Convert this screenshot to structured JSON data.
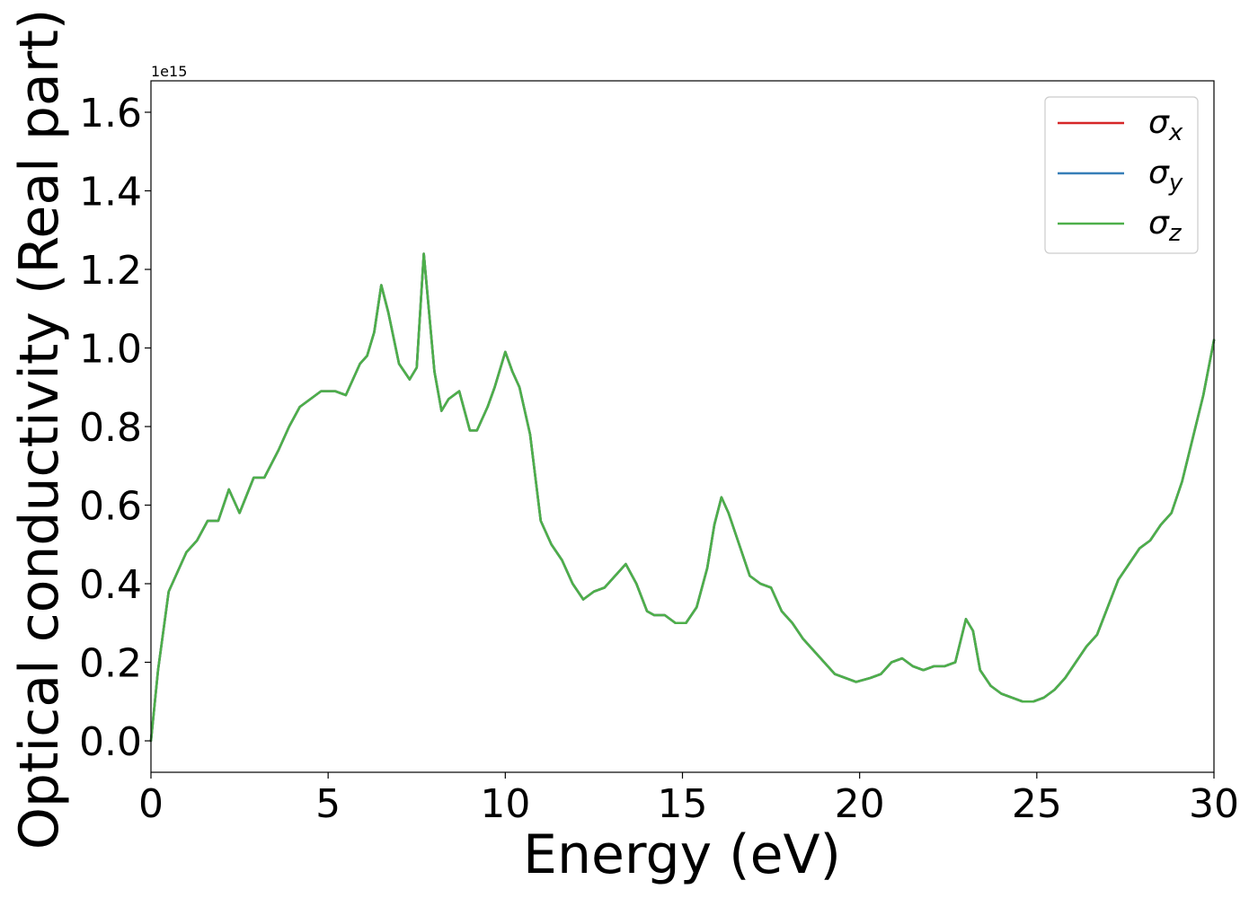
{
  "chart_data": {
    "type": "line",
    "title": "",
    "xlabel": "Energy (eV)",
    "ylabel": "Optical conductivity (Real part)",
    "y_offset_text": "1e15",
    "xlim": [
      0,
      30
    ],
    "ylim": [
      -0.08,
      1.68
    ],
    "x_ticks": [
      0,
      5,
      10,
      15,
      20,
      25,
      30
    ],
    "x_tick_labels": [
      "0",
      "5",
      "10",
      "15",
      "20",
      "25",
      "30"
    ],
    "y_ticks": [
      0.0,
      0.2,
      0.4,
      0.6,
      0.8,
      1.0,
      1.2,
      1.4,
      1.6
    ],
    "y_tick_labels": [
      "0.0",
      "0.2",
      "0.4",
      "0.6",
      "0.8",
      "1.0",
      "1.2",
      "1.4",
      "1.6"
    ],
    "grid": false,
    "legend_position": "top-right",
    "x": [
      0,
      0.2,
      0.5,
      0.7,
      1.0,
      1.3,
      1.6,
      1.9,
      2.2,
      2.5,
      2.9,
      3.2,
      3.6,
      3.9,
      4.2,
      4.5,
      4.8,
      5.2,
      5.5,
      5.9,
      6.1,
      6.3,
      6.5,
      6.7,
      7.0,
      7.3,
      7.5,
      7.7,
      8.0,
      8.2,
      8.4,
      8.7,
      9.0,
      9.2,
      9.5,
      9.7,
      10.0,
      10.2,
      10.4,
      10.7,
      11.0,
      11.3,
      11.6,
      11.9,
      12.2,
      12.5,
      12.8,
      13.1,
      13.4,
      13.7,
      14.0,
      14.2,
      14.5,
      14.8,
      15.1,
      15.4,
      15.7,
      15.9,
      16.1,
      16.3,
      16.6,
      16.9,
      17.2,
      17.5,
      17.8,
      18.1,
      18.4,
      18.7,
      19.0,
      19.3,
      19.6,
      19.9,
      20.3,
      20.6,
      20.9,
      21.2,
      21.5,
      21.8,
      22.1,
      22.4,
      22.7,
      23.0,
      23.2,
      23.4,
      23.7,
      24.0,
      24.3,
      24.6,
      24.9,
      25.2,
      25.5,
      25.8,
      26.1,
      26.4,
      26.7,
      27.0,
      27.3,
      27.6,
      27.9,
      28.2,
      28.5,
      28.8,
      29.1,
      29.4,
      29.7,
      30.0
    ],
    "series": [
      {
        "name": "σx",
        "color": "#d62728",
        "values": [
          0.0,
          0.18,
          0.38,
          0.42,
          0.48,
          0.51,
          0.56,
          0.56,
          0.64,
          0.58,
          0.67,
          0.67,
          0.74,
          0.8,
          0.85,
          0.87,
          0.89,
          0.89,
          0.88,
          0.96,
          0.98,
          1.04,
          1.16,
          1.09,
          0.96,
          0.92,
          0.95,
          1.24,
          0.94,
          0.84,
          0.87,
          0.89,
          0.79,
          0.79,
          0.85,
          0.9,
          0.99,
          0.94,
          0.9,
          0.78,
          0.56,
          0.5,
          0.46,
          0.4,
          0.36,
          0.38,
          0.39,
          0.42,
          0.45,
          0.4,
          0.33,
          0.32,
          0.32,
          0.3,
          0.3,
          0.34,
          0.44,
          0.55,
          0.62,
          0.58,
          0.5,
          0.42,
          0.4,
          0.39,
          0.33,
          0.3,
          0.26,
          0.23,
          0.2,
          0.17,
          0.16,
          0.15,
          0.16,
          0.17,
          0.2,
          0.21,
          0.19,
          0.18,
          0.19,
          0.19,
          0.2,
          0.31,
          0.28,
          0.18,
          0.14,
          0.12,
          0.11,
          0.1,
          0.1,
          0.11,
          0.13,
          0.16,
          0.2,
          0.24,
          0.27,
          0.34,
          0.41,
          0.45,
          0.49,
          0.51,
          0.55,
          0.58,
          0.66,
          0.77,
          0.88,
          1.02
        ]
      },
      {
        "name": "σy",
        "color": "#377eb8",
        "values": [
          0.0,
          0.18,
          0.38,
          0.42,
          0.48,
          0.51,
          0.56,
          0.56,
          0.64,
          0.58,
          0.67,
          0.67,
          0.74,
          0.8,
          0.85,
          0.87,
          0.89,
          0.89,
          0.88,
          0.96,
          0.98,
          1.04,
          1.16,
          1.09,
          0.96,
          0.92,
          0.95,
          1.24,
          0.94,
          0.84,
          0.87,
          0.89,
          0.79,
          0.79,
          0.85,
          0.9,
          0.99,
          0.94,
          0.9,
          0.78,
          0.56,
          0.5,
          0.46,
          0.4,
          0.36,
          0.38,
          0.39,
          0.42,
          0.45,
          0.4,
          0.33,
          0.32,
          0.32,
          0.3,
          0.3,
          0.34,
          0.44,
          0.55,
          0.62,
          0.58,
          0.5,
          0.42,
          0.4,
          0.39,
          0.33,
          0.3,
          0.26,
          0.23,
          0.2,
          0.17,
          0.16,
          0.15,
          0.16,
          0.17,
          0.2,
          0.21,
          0.19,
          0.18,
          0.19,
          0.19,
          0.2,
          0.31,
          0.28,
          0.18,
          0.14,
          0.12,
          0.11,
          0.1,
          0.1,
          0.11,
          0.13,
          0.16,
          0.2,
          0.24,
          0.27,
          0.34,
          0.41,
          0.45,
          0.49,
          0.51,
          0.55,
          0.58,
          0.66,
          0.77,
          0.88,
          1.02
        ]
      },
      {
        "name": "σz",
        "color": "#4daf4a",
        "values": [
          0.0,
          0.18,
          0.38,
          0.42,
          0.48,
          0.51,
          0.56,
          0.56,
          0.64,
          0.58,
          0.67,
          0.67,
          0.74,
          0.8,
          0.85,
          0.87,
          0.89,
          0.89,
          0.88,
          0.96,
          0.98,
          1.04,
          1.16,
          1.09,
          0.96,
          0.92,
          0.95,
          1.24,
          0.94,
          0.84,
          0.87,
          0.89,
          0.79,
          0.79,
          0.85,
          0.9,
          0.99,
          0.94,
          0.9,
          0.78,
          0.56,
          0.5,
          0.46,
          0.4,
          0.36,
          0.38,
          0.39,
          0.42,
          0.45,
          0.4,
          0.33,
          0.32,
          0.32,
          0.3,
          0.3,
          0.34,
          0.44,
          0.55,
          0.62,
          0.58,
          0.5,
          0.42,
          0.4,
          0.39,
          0.33,
          0.3,
          0.26,
          0.23,
          0.2,
          0.17,
          0.16,
          0.15,
          0.16,
          0.17,
          0.2,
          0.21,
          0.19,
          0.18,
          0.19,
          0.19,
          0.2,
          0.31,
          0.28,
          0.18,
          0.14,
          0.12,
          0.11,
          0.1,
          0.1,
          0.11,
          0.13,
          0.16,
          0.2,
          0.24,
          0.27,
          0.34,
          0.41,
          0.45,
          0.49,
          0.51,
          0.55,
          0.58,
          0.66,
          0.77,
          0.88,
          1.02
        ]
      }
    ],
    "legend": [
      {
        "symbol": "σ",
        "subscript": "x",
        "color": "#d62728"
      },
      {
        "symbol": "σ",
        "subscript": "y",
        "color": "#377eb8"
      },
      {
        "symbol": "σ",
        "subscript": "z",
        "color": "#4daf4a"
      }
    ]
  }
}
